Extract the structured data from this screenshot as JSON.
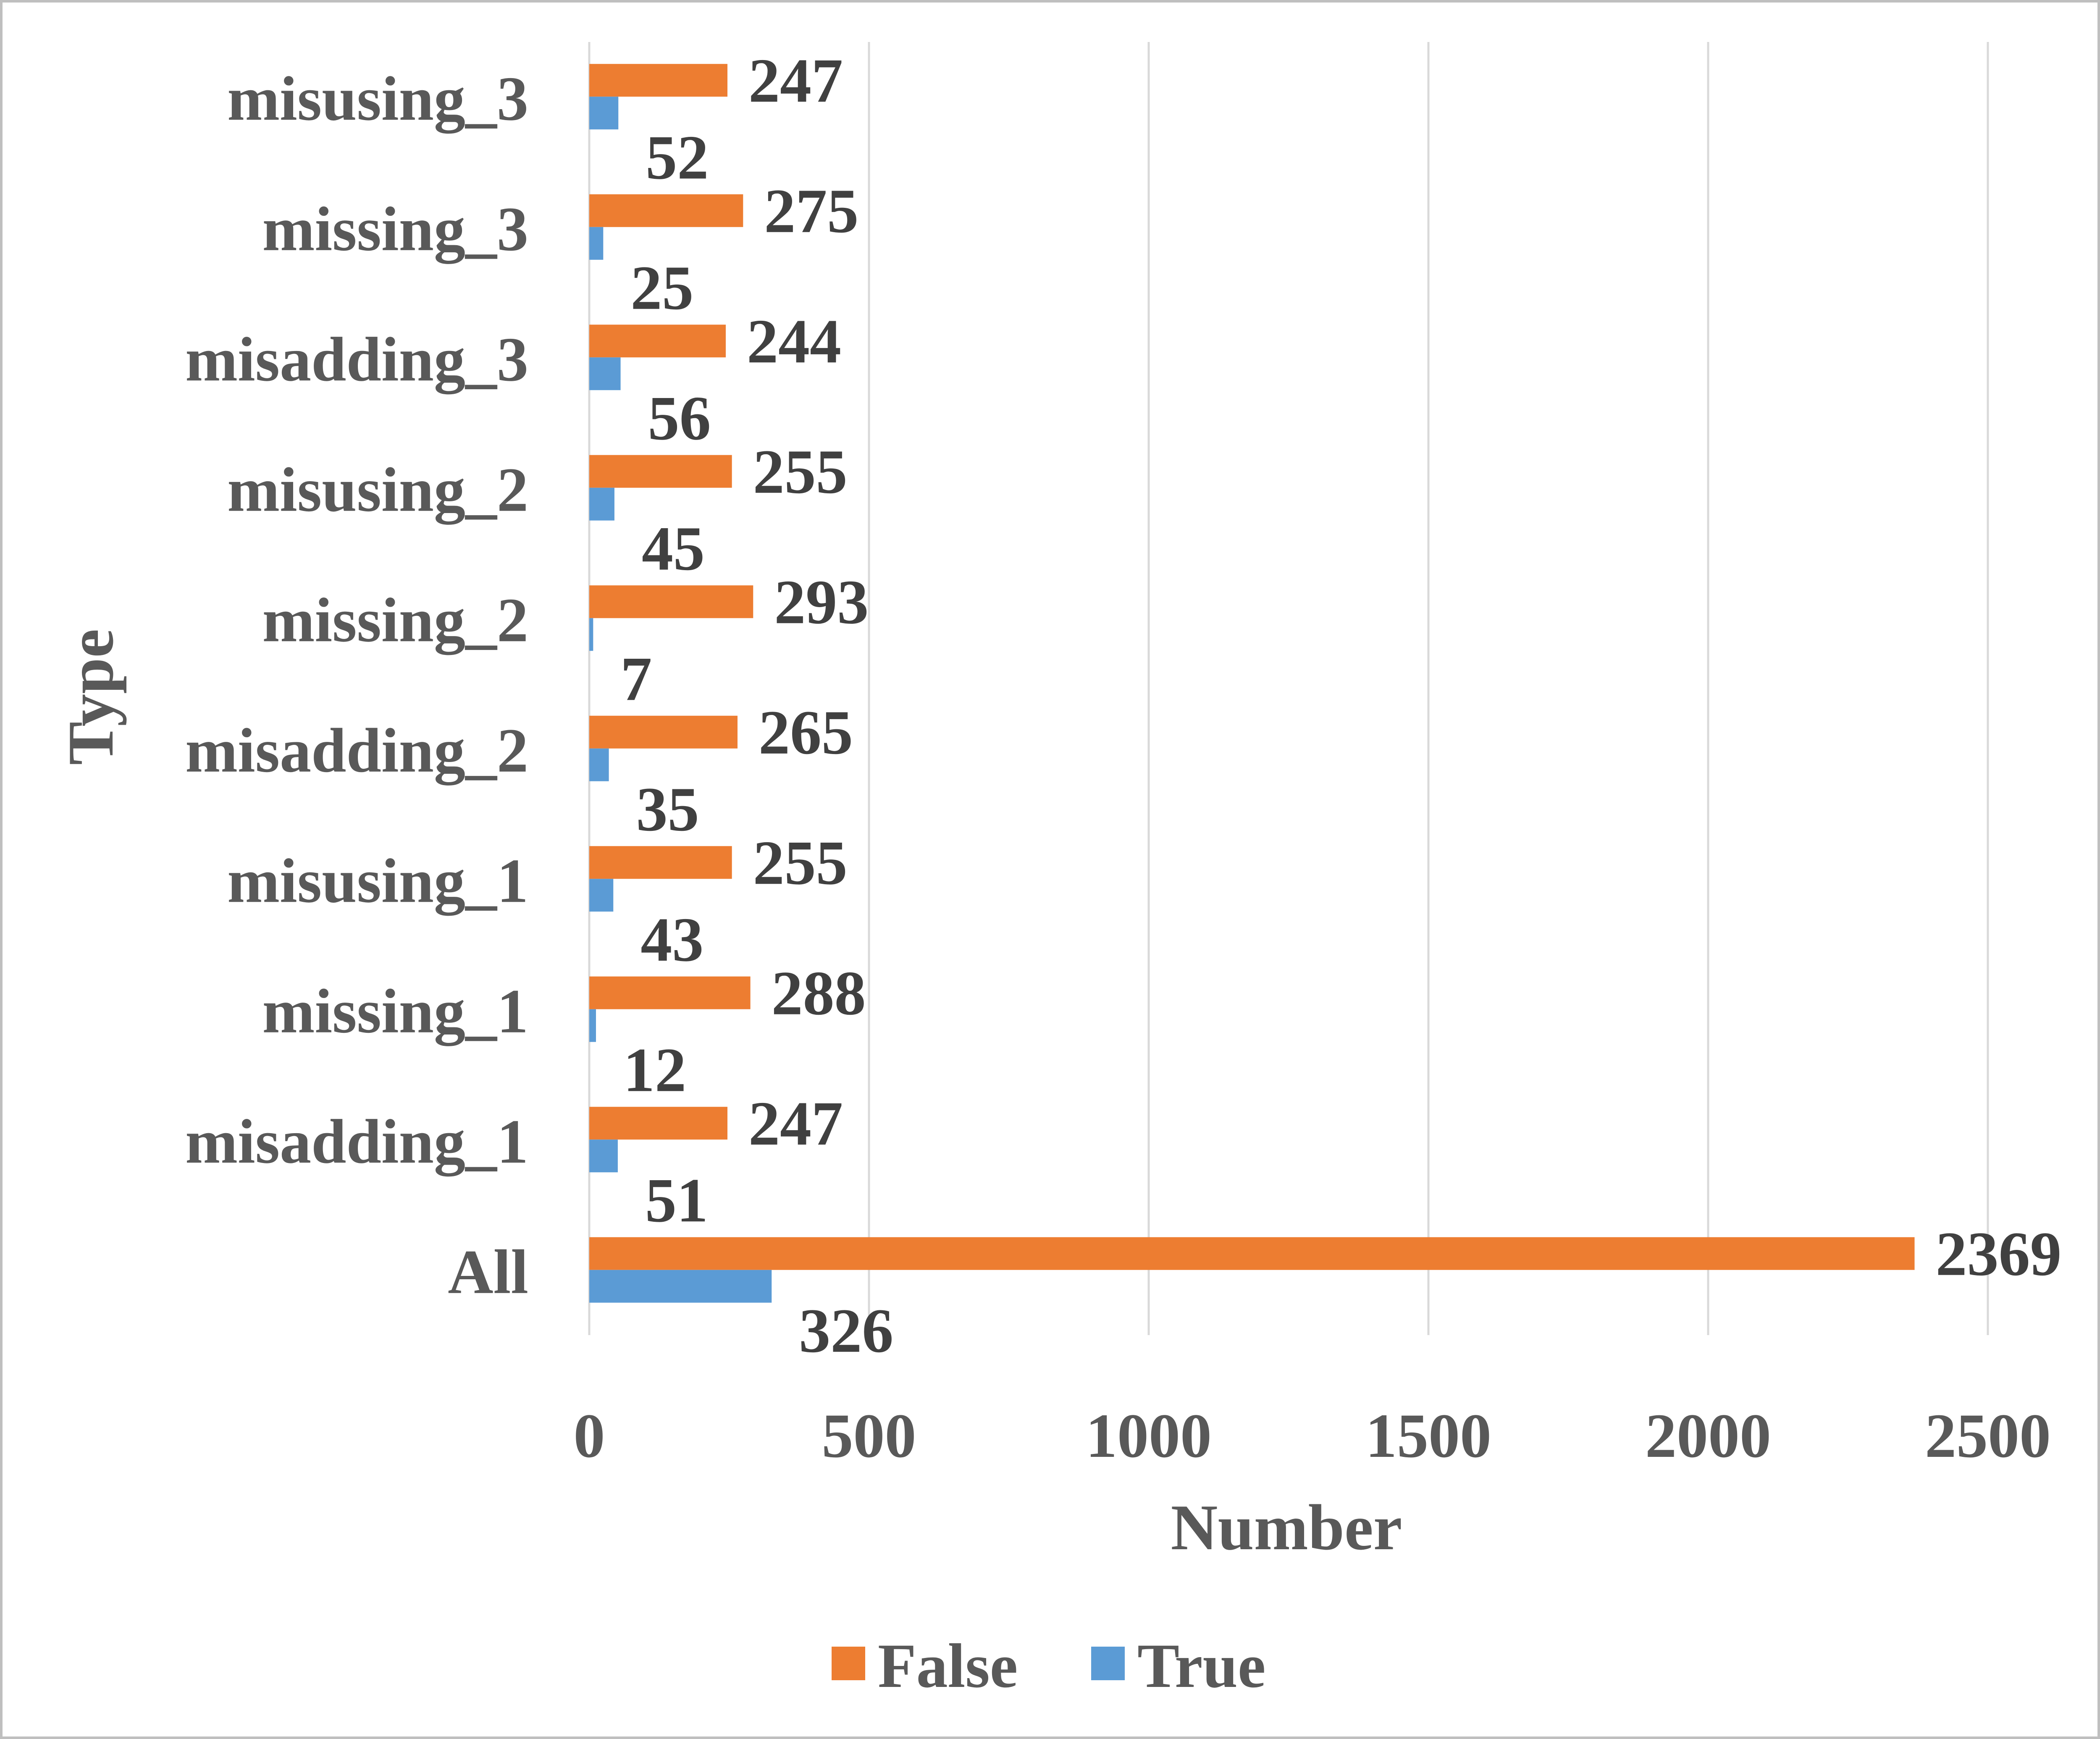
{
  "chart_data": {
    "type": "bar",
    "orientation": "horizontal",
    "categories": [
      "All",
      "misadding_1",
      "missing_1",
      "misusing_1",
      "misadding_2",
      "missing_2",
      "misusing_2",
      "misadding_3",
      "missing_3",
      "misusing_3"
    ],
    "series": [
      {
        "name": "False",
        "color": "#ED7D31",
        "values": [
          2369,
          247,
          288,
          255,
          265,
          293,
          255,
          244,
          275,
          247
        ]
      },
      {
        "name": "True",
        "color": "#5B9BD5",
        "values": [
          326,
          51,
          12,
          43,
          35,
          7,
          45,
          56,
          25,
          52
        ]
      }
    ],
    "xlabel": "Number",
    "ylabel": "Type",
    "xlim": [
      0,
      2500
    ],
    "xticks": [
      "0",
      "500",
      "1000",
      "1500",
      "2000",
      "2500"
    ],
    "grid": "vertical",
    "legend": {
      "position": "bottom",
      "entries": [
        "False",
        "True"
      ]
    },
    "data_labels": true
  }
}
